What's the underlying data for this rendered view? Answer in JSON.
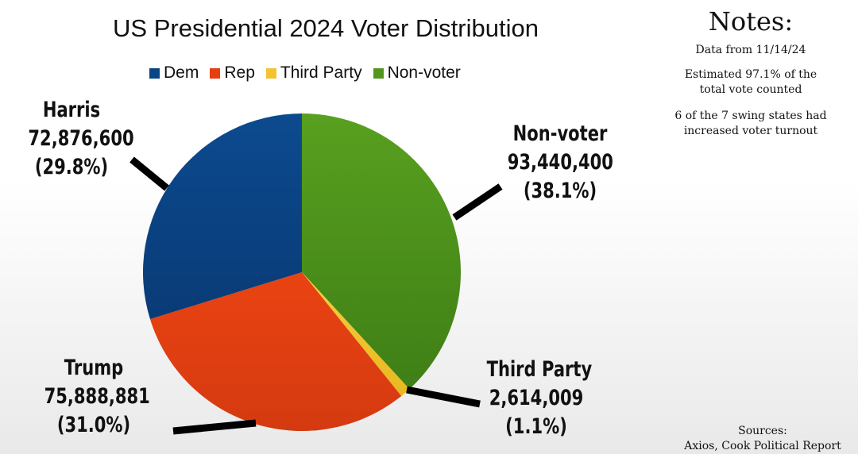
{
  "chart_data": {
    "type": "pie",
    "title": "US Presidential 2024 Voter Distribution",
    "legend_position": "top",
    "legend": [
      {
        "label": "Dem",
        "color": "#0b4587"
      },
      {
        "label": "Rep",
        "color": "#e63e12"
      },
      {
        "label": "Third Party",
        "color": "#f4c430"
      },
      {
        "label": "Non-voter",
        "color": "#54961d"
      }
    ],
    "slices": [
      {
        "key": "nonvoter",
        "label": "Non-voter",
        "value": 93440400,
        "value_label": "93,440,400",
        "percent": 38.1,
        "percent_label": "(38.1%)",
        "color": "#54961d"
      },
      {
        "key": "third",
        "label": "Third Party",
        "value": 2614009,
        "value_label": "2,614,009",
        "percent": 1.1,
        "percent_label": "(1.1%)",
        "color": "#f4c430"
      },
      {
        "key": "trump",
        "label": "Trump",
        "value": 75888881,
        "value_label": "75,888,881",
        "percent": 31.0,
        "percent_label": "(31.0%)",
        "color": "#e63e12"
      },
      {
        "key": "harris",
        "label": "Harris",
        "value": 72876600,
        "value_label": "72,876,600",
        "percent": 29.8,
        "percent_label": "(29.8%)",
        "color": "#0b4587"
      }
    ]
  },
  "notes": {
    "title": "Notes:",
    "items": [
      "Data from 11/14/24",
      "Estimated 97.1% of the total vote counted",
      "6 of the 7 swing states had increased voter turnout"
    ]
  },
  "sources": {
    "label": "Sources:",
    "text": "Axios, Cook Political Report"
  }
}
